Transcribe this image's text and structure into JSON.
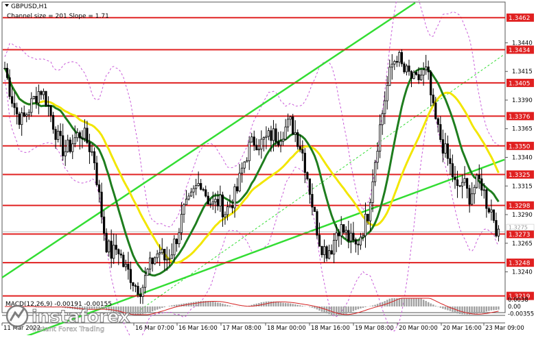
{
  "header": {
    "symbol": "GBPUSD,H1",
    "channel_info": "Channel size = 201 Slope = 1.71"
  },
  "macd": {
    "label": "MACD(12,26,9) -0.00191 -0.00155",
    "ticks": [
      "0.0038",
      "0.00",
      "-0.00355"
    ]
  },
  "watermark": {
    "brand": "instaforex",
    "tagline": "Instant Forex Trading"
  },
  "colors": {
    "level_line": "#e02020",
    "ma_fast": "#1e7d1e",
    "ma_slow": "#f2e600",
    "channel": "#33dd33",
    "envelope": "#c85ad8",
    "candle": "#000000",
    "macd_hist": "#a0a0a0",
    "macd_signal": "#d42020"
  },
  "chart_data": {
    "type": "candlestick",
    "ylim": [
      1.3205,
      1.3475
    ],
    "x_labels": [
      "11 Mar 2022",
      "16 Mar 07:00",
      "16 Mar 16:00",
      "17 Mar 08:00",
      "18 Mar 00:00",
      "18 Mar 16:00",
      "19 Mar 08:00",
      "20 Mar 00:00",
      "20 Mar 16:00",
      "23 Mar 09:00"
    ],
    "y_ticks": [
      "1.3440",
      "1.3415",
      "1.3390",
      "1.3365",
      "1.3340",
      "1.3315",
      "1.3290",
      "1.3265",
      "1.3240"
    ],
    "levels": [
      {
        "label": "1.3462",
        "value": 1.3462
      },
      {
        "label": "1.3434",
        "value": 1.3434
      },
      {
        "label": "1.3405",
        "value": 1.3405
      },
      {
        "label": "1.3376",
        "value": 1.3376
      },
      {
        "label": "1.3350",
        "value": 1.335
      },
      {
        "label": "1.3325",
        "value": 1.3325
      },
      {
        "label": "1.3298",
        "value": 1.3298
      },
      {
        "label": "1.3273",
        "value": 1.3273
      },
      {
        "label": "1.3248",
        "value": 1.3248
      },
      {
        "label": "1.3219",
        "value": 1.3219
      }
    ],
    "current_price": {
      "label": "1.3275",
      "value": 1.3275
    },
    "close_path": [
      1.3418,
      1.3395,
      1.3378,
      1.3372,
      1.3382,
      1.3392,
      1.34,
      1.339,
      1.3372,
      1.3355,
      1.3345,
      1.335,
      1.3358,
      1.3362,
      1.3352,
      1.334,
      1.33,
      1.3265,
      1.3255,
      1.3262,
      1.3245,
      1.3238,
      1.3228,
      1.3225,
      1.324,
      1.3252,
      1.3258,
      1.325,
      1.3258,
      1.3272,
      1.3292,
      1.33,
      1.3312,
      1.332,
      1.3305,
      1.3298,
      1.3302,
      1.3292,
      1.33,
      1.331,
      1.3332,
      1.3348,
      1.3355,
      1.3352,
      1.3356,
      1.336,
      1.3358,
      1.3365,
      1.337,
      1.336,
      1.3345,
      1.332,
      1.329,
      1.3265,
      1.3258,
      1.3262,
      1.328,
      1.3275,
      1.3268,
      1.3262,
      1.3275,
      1.329,
      1.333,
      1.3365,
      1.3395,
      1.342,
      1.343,
      1.3415,
      1.3412,
      1.3405,
      1.3412,
      1.3415,
      1.338,
      1.336,
      1.3345,
      1.333,
      1.331,
      1.332,
      1.3305,
      1.3315,
      1.332,
      1.33,
      1.3292,
      1.327
    ]
  }
}
